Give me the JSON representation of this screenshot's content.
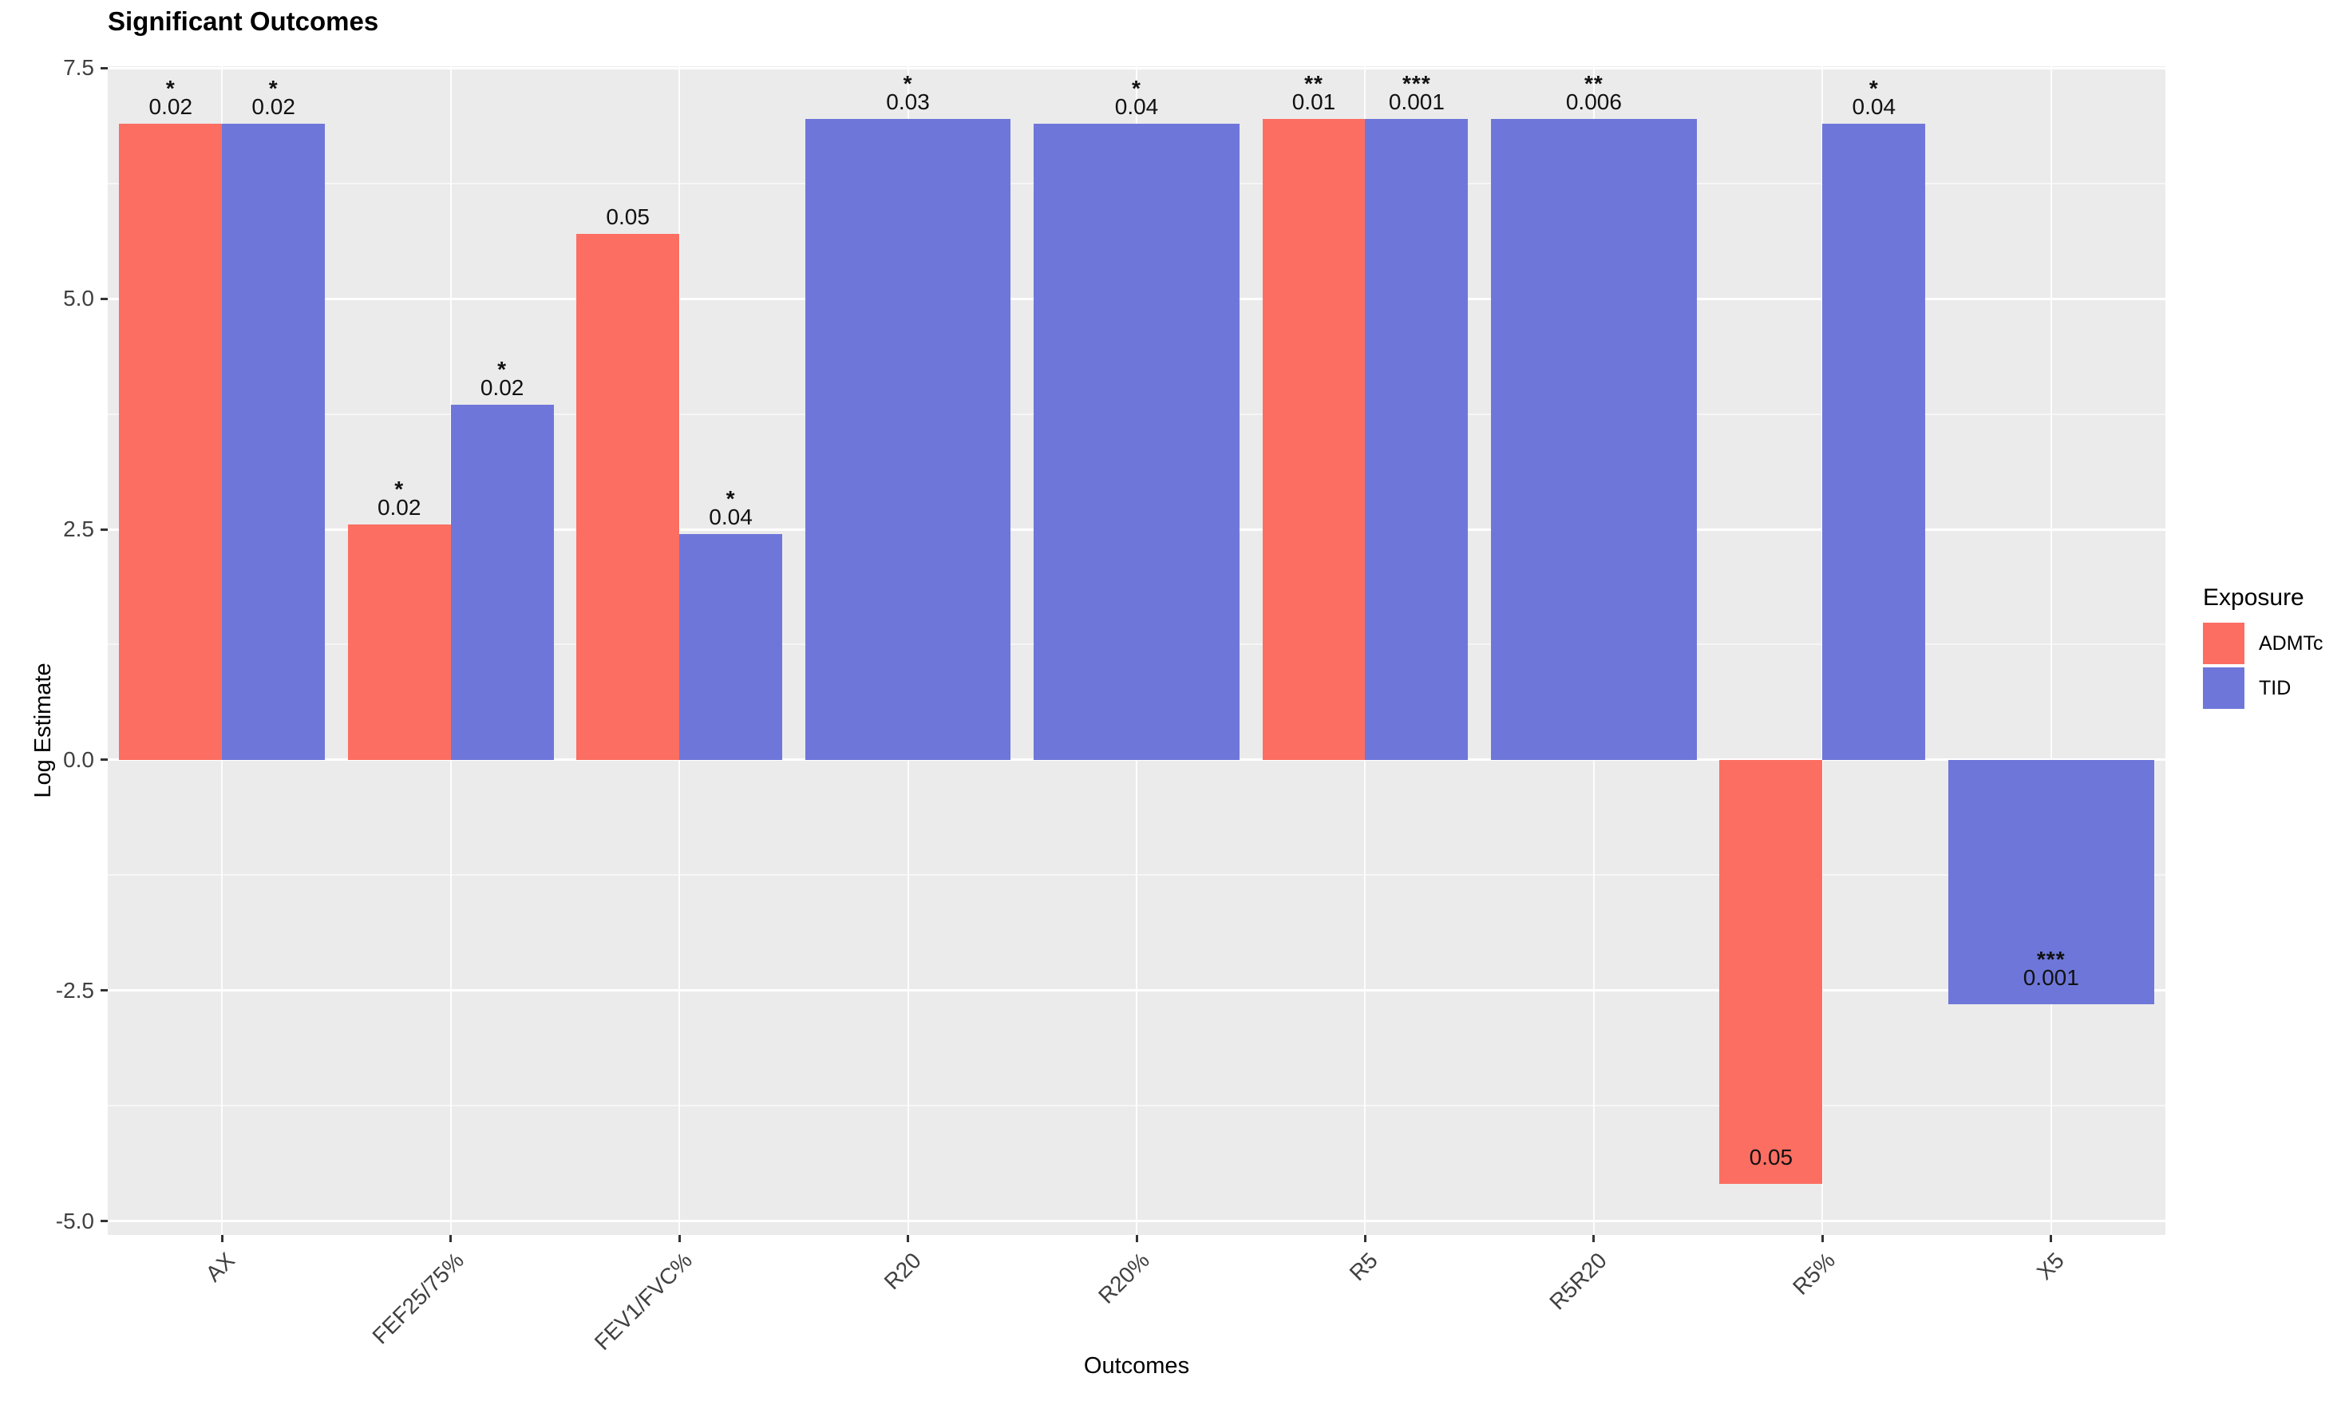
{
  "chart_data": {
    "type": "bar",
    "title": "Significant Outcomes",
    "xlabel": "Outcomes",
    "ylabel": "Log Estimate",
    "ylim": [
      -5.15,
      7.52
    ],
    "grid": true,
    "panel_background": "#EBEBEB",
    "gridline_color": "#FFFFFF",
    "yticks": [
      {
        "value": 7.5,
        "label": "7.5"
      },
      {
        "value": 5.0,
        "label": "5.0"
      },
      {
        "value": 2.5,
        "label": "2.5"
      },
      {
        "value": 0.0,
        "label": "0.0"
      },
      {
        "value": -2.5,
        "label": "-2.5"
      },
      {
        "value": -5.0,
        "label": "-5.0"
      }
    ],
    "yticks_minor": [
      6.25,
      3.75,
      1.25,
      -1.25,
      -3.75
    ],
    "categories": [
      "AX",
      "FEF25/75%",
      "FEV1/FVC%",
      "R20",
      "R20%",
      "R5",
      "R5R20",
      "R5%",
      "X5"
    ],
    "legend": {
      "title": "Exposure",
      "position": "right",
      "entries": [
        {
          "label": "ADMTc",
          "color": "#FC6E62"
        },
        {
          "label": "TID",
          "color": "#6E77D9"
        }
      ]
    },
    "groups": [
      {
        "category": "AX",
        "bars": [
          {
            "series": "ADMTc",
            "value": 6.9,
            "p_label": "0.02",
            "stars": "*"
          },
          {
            "series": "TID",
            "value": 6.9,
            "p_label": "0.02",
            "stars": "*"
          }
        ]
      },
      {
        "category": "FEF25/75%",
        "bars": [
          {
            "series": "ADMTc",
            "value": 2.55,
            "p_label": "0.02",
            "stars": "*"
          },
          {
            "series": "TID",
            "value": 3.85,
            "p_label": "0.02",
            "stars": "*"
          }
        ]
      },
      {
        "category": "FEV1/FVC%",
        "bars": [
          {
            "series": "ADMTc",
            "value": 5.7,
            "p_label": "0.05",
            "stars": ""
          },
          {
            "series": "TID",
            "value": 2.45,
            "p_label": "0.04",
            "stars": "*"
          }
        ]
      },
      {
        "category": "R20",
        "bars": [
          {
            "series": "TID",
            "value": 6.95,
            "p_label": "0.03",
            "stars": "*"
          }
        ]
      },
      {
        "category": "R20%",
        "bars": [
          {
            "series": "TID",
            "value": 6.9,
            "p_label": "0.04",
            "stars": "*"
          }
        ]
      },
      {
        "category": "R5",
        "bars": [
          {
            "series": "ADMTc",
            "value": 6.95,
            "p_label": "0.01",
            "stars": "**"
          },
          {
            "series": "TID",
            "value": 6.95,
            "p_label": "0.001",
            "stars": "***"
          }
        ]
      },
      {
        "category": "R5R20",
        "bars": [
          {
            "series": "TID",
            "value": 6.95,
            "p_label": "0.006",
            "stars": "**"
          }
        ]
      },
      {
        "category": "R5%",
        "bars": [
          {
            "series": "ADMTc",
            "value": -4.6,
            "p_label": "0.05",
            "stars": ""
          },
          {
            "series": "TID",
            "value": 6.9,
            "p_label": "0.04",
            "stars": "*"
          }
        ]
      },
      {
        "category": "X5",
        "bars": [
          {
            "series": "TID",
            "value": -2.65,
            "p_label": "0.001",
            "stars": "***"
          }
        ]
      }
    ]
  }
}
